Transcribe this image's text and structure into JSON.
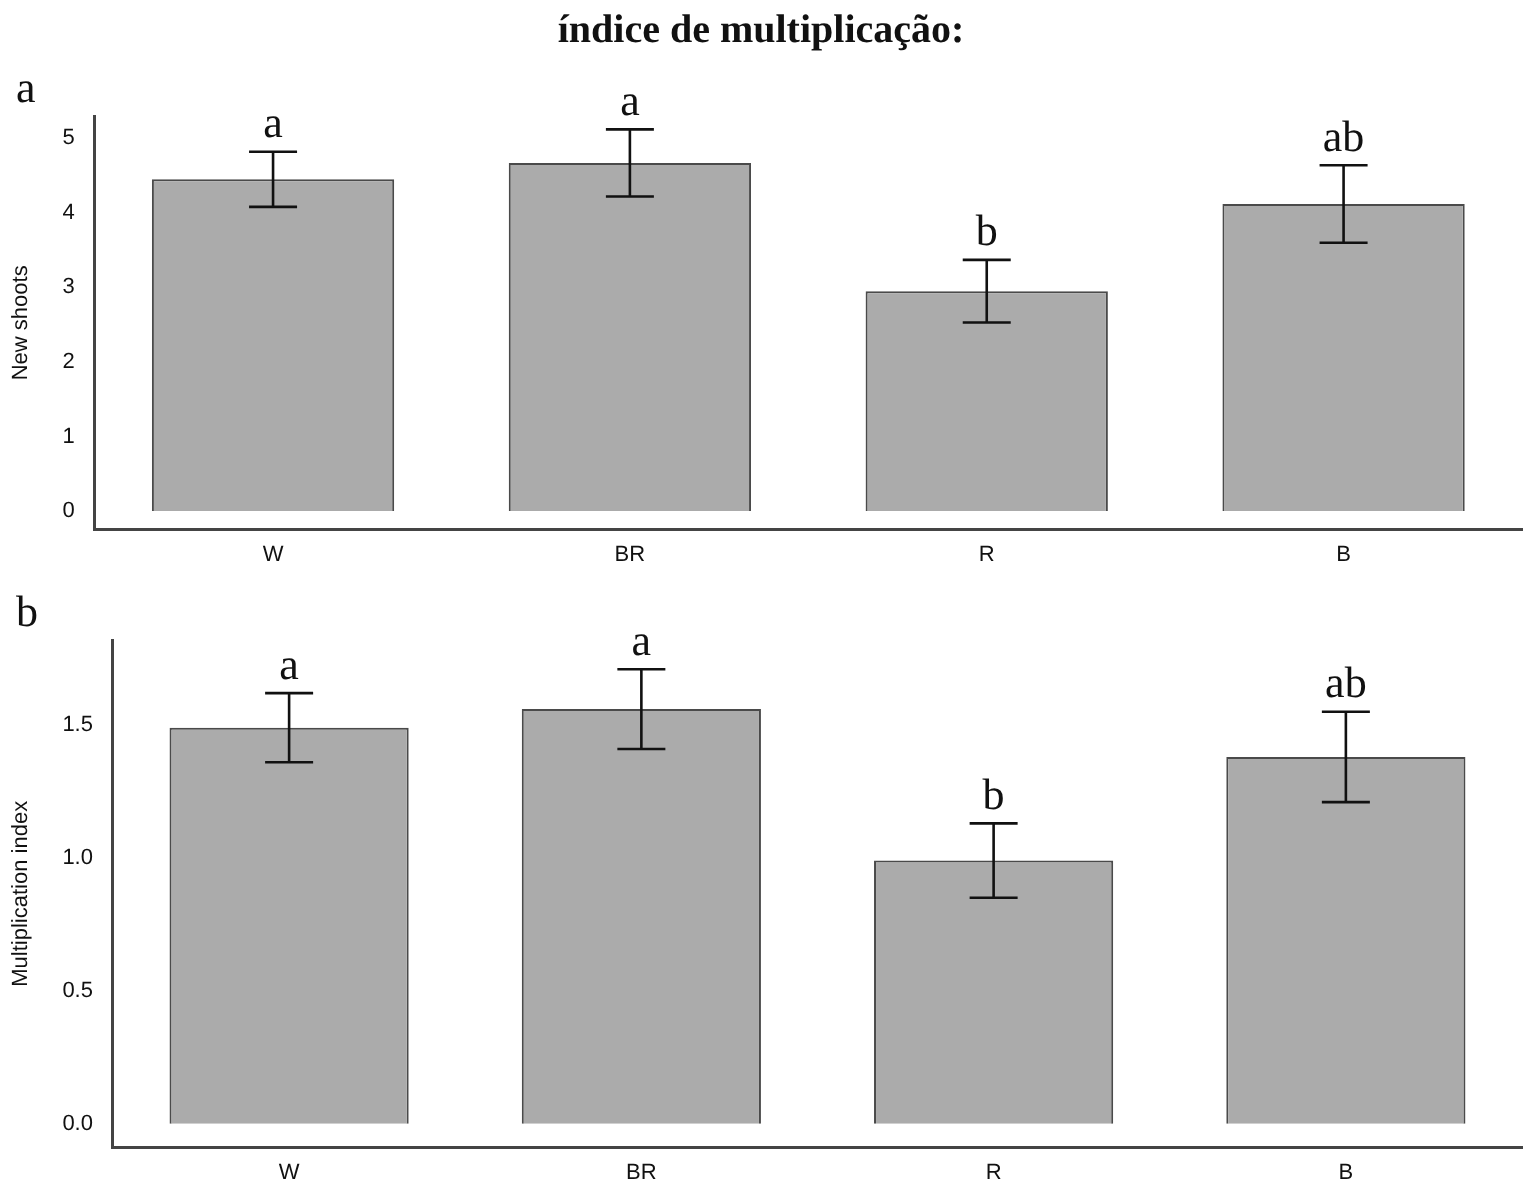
{
  "chart_data": [
    {
      "type": "bar",
      "title": "índice de multiplicação:",
      "ylabel": "New shoots",
      "categories": [
        "W",
        "BR",
        "R",
        "B"
      ],
      "values": [
        4.45,
        4.67,
        2.95,
        4.12
      ],
      "errors": [
        0.37,
        0.45,
        0.42,
        0.52
      ],
      "color": "#ababab",
      "ylim": [
        -0.25,
        5.3
      ],
      "yticks": [
        0,
        1,
        2,
        3,
        4,
        5
      ],
      "grid": false,
      "legend": false,
      "annotations": [
        "a",
        {
          "text": "a",
          "x": "W",
          "y": 4.82
        },
        {
          "text": "a",
          "x": "BR",
          "y": 5.12
        },
        {
          "text": "b",
          "x": "R",
          "y": 3.37
        },
        {
          "text": "ab",
          "x": "B",
          "y": 4.64
        }
      ]
    },
    {
      "type": "bar",
      "ylabel": "Multiplication index",
      "categories": [
        "W",
        "BR",
        "R",
        "B"
      ],
      "values": [
        1.49,
        1.56,
        0.99,
        1.38
      ],
      "errors": [
        0.13,
        0.15,
        0.14,
        0.17
      ],
      "color": "#ababab",
      "ylim": [
        -0.09,
        1.82
      ],
      "yticks": [
        {
          "value": 0,
          "label": "0.0"
        },
        {
          "value": 0.5,
          "label": "0.5"
        },
        {
          "value": 1,
          "label": "1.0"
        },
        {
          "value": 1.5,
          "label": "1.5"
        }
      ],
      "grid": false,
      "legend": false,
      "annotations": [
        "b",
        {
          "text": "a",
          "x": "W",
          "y": 1.62
        },
        {
          "text": "a",
          "x": "BR",
          "y": 1.71
        },
        {
          "text": "b",
          "x": "R",
          "y": 1.13
        },
        {
          "text": "ab",
          "x": "B",
          "y": 1.55
        }
      ]
    }
  ]
}
